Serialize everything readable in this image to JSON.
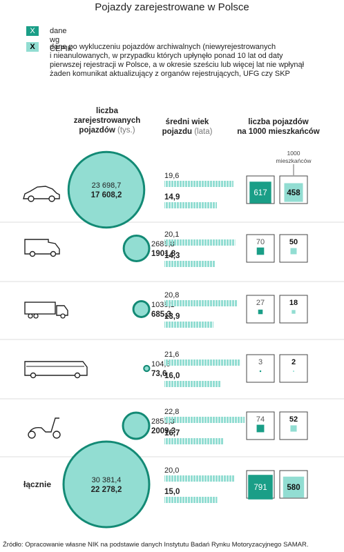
{
  "title": "Pojazdy zarejestrowane w Polsce",
  "legend": [
    {
      "marker": "X",
      "text": "dane wg CEPIK",
      "style": "dark"
    },
    {
      "marker": "X",
      "text": "dane po wykluczeniu pojazdów archiwalnych (niewyrejestrowanych\ni nieanulowanych, w przypadku których upłynęło ponad 10 lat od daty\npierwszej rejestracji w Polsce, a w okresie sześciu lub więcej lat nie wpłynął\nżaden komunikat aktualizujący z organów rejestrujących, UFG czy SKP",
      "style": "light"
    }
  ],
  "columns": {
    "count": {
      "title": "liczba\nzarejestrowanych\npojazdów",
      "unit": "(tys.)"
    },
    "age": {
      "title": "średni wiek\npojazdu",
      "unit": "(lata)"
    },
    "per1000": {
      "title": "liczba pojazdów\nna 1000 mieszkańców"
    }
  },
  "reference_label": "1000\nmieszkańców",
  "colors": {
    "dark": "#1a9e87",
    "light": "#92ddd2",
    "outline": "#138a75",
    "divider": "#dcdcdc"
  },
  "source": "Źródło: Opracowanie własne NIK na podstawie danych Instytutu Badań Rynku Motoryzacyjnego SAMAR.",
  "chart_data": {
    "type": "table",
    "series": [
      {
        "name": "dane wg CEPIK",
        "style": "dark"
      },
      {
        "name": "dane po wykluczeniu pojazdów archiwalnych",
        "style": "light"
      }
    ],
    "rows": [
      {
        "icon": "car-icon",
        "label": "",
        "count": [
          23698.7,
          17608.2
        ],
        "count_text": [
          "23 698,7",
          "17 608,2"
        ],
        "age": [
          19.6,
          14.9
        ],
        "age_text": [
          "19,6",
          "14,9"
        ],
        "per1000": [
          617,
          458
        ],
        "per1000_text": [
          "617",
          "458"
        ]
      },
      {
        "icon": "van-icon",
        "label": "",
        "count": [
          2686.8,
          1901.8
        ],
        "count_text": [
          "2686,8",
          "1901,8"
        ],
        "age": [
          20.1,
          14.3
        ],
        "age_text": [
          "20,1",
          "14,3"
        ],
        "per1000": [
          70,
          50
        ],
        "per1000_text": [
          "70",
          "50"
        ]
      },
      {
        "icon": "truck-icon",
        "label": "",
        "count": [
          1038.1,
          685.3
        ],
        "count_text": [
          "1038,1",
          "685,3"
        ],
        "age": [
          20.8,
          13.9
        ],
        "age_text": [
          "20,8",
          "13,9"
        ],
        "per1000": [
          27,
          18
        ],
        "per1000_text": [
          "27",
          "18"
        ]
      },
      {
        "icon": "bus-icon",
        "label": "",
        "count": [
          104.6,
          73.6
        ],
        "count_text": [
          "104,6",
          "73,6"
        ],
        "age": [
          21.6,
          16.0
        ],
        "age_text": [
          "21,6",
          "16,0"
        ],
        "per1000": [
          3,
          2
        ],
        "per1000_text": [
          "3",
          "2"
        ]
      },
      {
        "icon": "scooter-icon",
        "label": "",
        "count": [
          2853.3,
          2009.3
        ],
        "count_text": [
          "2853,3",
          "2009,3"
        ],
        "age": [
          22.8,
          16.7
        ],
        "age_text": [
          "22,8",
          "16,7"
        ],
        "per1000": [
          74,
          52
        ],
        "per1000_text": [
          "74",
          "52"
        ]
      },
      {
        "icon": "",
        "label": "łącznie",
        "count": [
          30381.4,
          22278.2
        ],
        "count_text": [
          "30 381,4",
          "22 278,2"
        ],
        "age": [
          20.0,
          15.0
        ],
        "age_text": [
          "20,0",
          "15,0"
        ],
        "per1000": [
          791,
          580
        ],
        "per1000_text": [
          "791",
          "580"
        ]
      }
    ]
  }
}
